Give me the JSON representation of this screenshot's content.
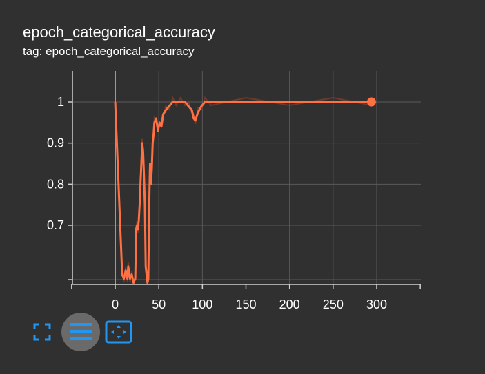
{
  "header": {
    "title": "epoch_categorical_accuracy",
    "subtitle": "tag: epoch_categorical_accuracy"
  },
  "colors": {
    "background": "#303030",
    "line": "#ff7043",
    "raw_line": "#7a3e2a",
    "grid": "#5a5a5a",
    "axis": "#d0d0d0",
    "toolbar_accent": "#2196f3"
  },
  "toolbar": {
    "fullscreen_icon": "fullscreen-icon",
    "data_icon": "toggle-log-scale-icon",
    "fit_icon": "fit-domain-icon"
  },
  "chart_data": {
    "type": "line",
    "title": "",
    "xlabel": "",
    "ylabel": "",
    "xlim": [
      -50,
      350
    ],
    "ylim": [
      0.565,
      1.06
    ],
    "x_ticks": [
      0,
      50,
      100,
      150,
      200,
      250,
      300
    ],
    "y_ticks": [
      0.7,
      0.8,
      0.9,
      1
    ],
    "grid": true,
    "series": [
      {
        "x": [
          0,
          8,
          10,
          12,
          14,
          15,
          17,
          19,
          21,
          23,
          24,
          25,
          26,
          27,
          28,
          29,
          30,
          31,
          32,
          33,
          34,
          35,
          36,
          37,
          38,
          39,
          40,
          41,
          42,
          43,
          44,
          45,
          47,
          49,
          51,
          53,
          55,
          58,
          62,
          66,
          70,
          75,
          80,
          84,
          88,
          90,
          92,
          95,
          99,
          103,
          110,
          150,
          200,
          250,
          294
        ],
        "y": [
          1,
          0.58,
          0.57,
          0.59,
          0.57,
          0.6,
          0.57,
          0.58,
          0.56,
          0.57,
          0.69,
          0.7,
          0.69,
          0.71,
          0.75,
          0.8,
          0.85,
          0.9,
          0.88,
          0.82,
          0.75,
          0.6,
          0.58,
          0.56,
          0.57,
          0.75,
          0.85,
          0.8,
          0.84,
          0.9,
          0.92,
          0.95,
          0.96,
          0.93,
          0.95,
          0.94,
          0.97,
          0.98,
          0.99,
          1,
          1,
          1,
          1,
          0.99,
          0.98,
          0.96,
          0.955,
          0.975,
          0.99,
          1,
          1,
          1,
          1,
          1,
          1
        ]
      }
    ]
  }
}
